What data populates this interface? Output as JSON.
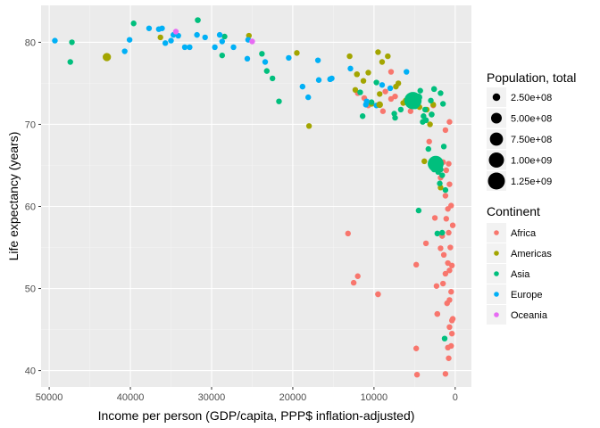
{
  "chart_data": {
    "type": "scatter",
    "xlabel": "Income per person (GDP/capita, PPP$ inflation-adjusted)",
    "ylabel": "Life expectancy (years)",
    "x_reversed": true,
    "xlim": [
      51000,
      -2000
    ],
    "ylim": [
      38,
      84.5
    ],
    "x_ticks": [
      50000,
      40000,
      30000,
      20000,
      10000,
      0
    ],
    "x_tick_labels": [
      "50000",
      "40000",
      "30000",
      "20000",
      "10000",
      "0"
    ],
    "y_ticks": [
      40,
      50,
      60,
      70,
      80
    ],
    "y_tick_labels": [
      "40",
      "50",
      "60",
      "70",
      "80"
    ],
    "grid": true,
    "legend_position": "right",
    "size_legend": {
      "title": "Population, total",
      "entries": [
        {
          "label": "2.50e+08",
          "value": 250000000
        },
        {
          "label": "5.00e+08",
          "value": 500000000
        },
        {
          "label": "7.50e+08",
          "value": 750000000
        },
        {
          "label": "1.00e+09",
          "value": 1000000000
        },
        {
          "label": "1.25e+09",
          "value": 1250000000
        }
      ]
    },
    "color_legend": {
      "title": "Continent",
      "entries": [
        {
          "label": "Africa",
          "color": "#F8766D"
        },
        {
          "label": "Americas",
          "color": "#A3A500"
        },
        {
          "label": "Asia",
          "color": "#00BF7D"
        },
        {
          "label": "Europe",
          "color": "#00B0F6"
        },
        {
          "label": "Oceania",
          "color": "#E76BF3"
        }
      ]
    },
    "series": [
      {
        "name": "Africa",
        "points": [
          [
            1200,
            39.6
          ],
          [
            4700,
            39.5
          ],
          [
            800,
            41.5
          ],
          [
            500,
            43.0
          ],
          [
            900,
            42.8
          ],
          [
            4800,
            42.7
          ],
          [
            400,
            44.5
          ],
          [
            700,
            45.3
          ],
          [
            400,
            46.1
          ],
          [
            300,
            46.3
          ],
          [
            2200,
            46.9
          ],
          [
            1000,
            48.2
          ],
          [
            700,
            48.6
          ],
          [
            9500,
            49.3
          ],
          [
            500,
            49.6
          ],
          [
            2300,
            50.3
          ],
          [
            1500,
            50.6
          ],
          [
            1200,
            51.8
          ],
          [
            700,
            52.2
          ],
          [
            400,
            52.8
          ],
          [
            4800,
            52.9
          ],
          [
            12000,
            51.5
          ],
          [
            12500,
            50.7
          ],
          [
            900,
            53.1
          ],
          [
            1400,
            54.1
          ],
          [
            600,
            55.0
          ],
          [
            1800,
            54.9
          ],
          [
            3600,
            55.5
          ],
          [
            13200,
            56.7
          ],
          [
            800,
            56.8
          ],
          [
            1600,
            56.4
          ],
          [
            300,
            57.7
          ],
          [
            1100,
            58.5
          ],
          [
            2500,
            58.6
          ],
          [
            500,
            60.1
          ],
          [
            900,
            59.7
          ],
          [
            1200,
            61.3
          ],
          [
            700,
            62.7
          ],
          [
            1800,
            63.5
          ],
          [
            1100,
            64.4
          ],
          [
            800,
            65.2
          ],
          [
            1500,
            65.4
          ],
          [
            3200,
            67.9
          ],
          [
            1200,
            69.3
          ],
          [
            700,
            70.3
          ],
          [
            5500,
            71.6
          ],
          [
            2700,
            72.3
          ],
          [
            8900,
            71.6
          ],
          [
            8600,
            74.0
          ],
          [
            5800,
            72.8
          ],
          [
            7900,
            73.1
          ],
          [
            7400,
            73.4
          ],
          [
            10700,
            72.3
          ],
          [
            12000,
            73.8
          ],
          [
            11200,
            73.2
          ],
          [
            7900,
            76.4
          ]
        ]
      },
      {
        "name": "Americas",
        "points": [
          [
            42900,
            78.2
          ],
          [
            36300,
            80.6
          ],
          [
            25400,
            80.8
          ],
          [
            19500,
            78.7
          ],
          [
            18000,
            69.8
          ],
          [
            13000,
            78.3
          ],
          [
            12300,
            74.2
          ],
          [
            12100,
            76.1
          ],
          [
            10700,
            76.3
          ],
          [
            9000,
            77.6
          ],
          [
            9300,
            73.7
          ],
          [
            10300,
            72.5
          ],
          [
            11300,
            75.3
          ],
          [
            8300,
            78.3
          ],
          [
            9500,
            78.8
          ],
          [
            7300,
            74.6
          ],
          [
            7000,
            75.0
          ],
          [
            6400,
            72.6
          ],
          [
            6100,
            72.9
          ],
          [
            5000,
            73.2
          ],
          [
            4400,
            72.1
          ],
          [
            3500,
            71.8
          ],
          [
            2900,
            71.2
          ],
          [
            2700,
            72.4
          ],
          [
            3800,
            65.5
          ],
          [
            3100,
            70.0
          ],
          [
            1800,
            62.3
          ],
          [
            9300,
            72.4
          ]
        ]
      },
      {
        "name": "Asia",
        "points": [
          [
            47200,
            80.0
          ],
          [
            47400,
            77.6
          ],
          [
            39600,
            82.3
          ],
          [
            31700,
            82.7
          ],
          [
            28400,
            80.7
          ],
          [
            28700,
            78.4
          ],
          [
            23800,
            78.6
          ],
          [
            23200,
            76.5
          ],
          [
            22500,
            75.6
          ],
          [
            21700,
            72.8
          ],
          [
            11400,
            71.0
          ],
          [
            11700,
            73.9
          ],
          [
            10300,
            72.7
          ],
          [
            9700,
            75.1
          ],
          [
            7400,
            70.8
          ],
          [
            7500,
            71.3
          ],
          [
            6700,
            71.8
          ],
          [
            5200,
            72.9
          ],
          [
            4900,
            72.2
          ],
          [
            4000,
            70.3
          ],
          [
            3900,
            71.0
          ],
          [
            3700,
            71.8
          ],
          [
            3000,
            72.9
          ],
          [
            2600,
            74.3
          ],
          [
            4300,
            74.1
          ],
          [
            1800,
            73.8
          ],
          [
            3300,
            67.0
          ],
          [
            2400,
            65.2
          ],
          [
            2600,
            64.5
          ],
          [
            2100,
            64.2
          ],
          [
            1600,
            63.8
          ],
          [
            1900,
            62.8
          ],
          [
            1200,
            62.0
          ],
          [
            1400,
            67.3
          ],
          [
            4500,
            59.5
          ],
          [
            1300,
            43.9
          ],
          [
            1600,
            56.8
          ],
          [
            2200,
            56.7
          ],
          [
            5600,
            73.1
          ],
          [
            1500,
            72.5
          ],
          [
            3600,
            70.5
          ]
        ]
      },
      {
        "name": "Europe",
        "points": [
          [
            49300,
            80.2
          ],
          [
            40700,
            78.9
          ],
          [
            37700,
            81.7
          ],
          [
            36100,
            81.7
          ],
          [
            35700,
            79.9
          ],
          [
            34100,
            80.8
          ],
          [
            33300,
            79.4
          ],
          [
            32700,
            79.4
          ],
          [
            30800,
            80.6
          ],
          [
            29000,
            80.9
          ],
          [
            28700,
            80.1
          ],
          [
            27300,
            79.4
          ],
          [
            25600,
            78.0
          ],
          [
            25500,
            80.3
          ],
          [
            23400,
            77.6
          ],
          [
            20500,
            78.1
          ],
          [
            18800,
            74.6
          ],
          [
            18100,
            73.3
          ],
          [
            16900,
            77.8
          ],
          [
            16800,
            75.4
          ],
          [
            15400,
            75.5
          ],
          [
            15200,
            75.6
          ],
          [
            12900,
            76.8
          ],
          [
            11000,
            72.4
          ],
          [
            10900,
            72.8
          ],
          [
            9700,
            72.3
          ],
          [
            9000,
            74.8
          ],
          [
            8000,
            74.4
          ],
          [
            6000,
            76.4
          ],
          [
            35000,
            80.2
          ],
          [
            34700,
            80.9
          ],
          [
            31800,
            80.9
          ],
          [
            29600,
            79.4
          ],
          [
            40100,
            80.3
          ],
          [
            36500,
            81.6
          ]
        ]
      },
      {
        "name": "Oceania",
        "points": [
          [
            34400,
            81.3
          ],
          [
            25000,
            80.1
          ]
        ]
      }
    ],
    "population_scale_points": [
      {
        "continent": "Asia",
        "x": 5200,
        "y": 72.9,
        "pop": 1300000000
      },
      {
        "continent": "Asia",
        "x": 2400,
        "y": 65.2,
        "pop": 1100000000
      },
      {
        "continent": "Americas",
        "x": 42900,
        "y": 78.2,
        "pop": 300000000
      },
      {
        "continent": "Asia",
        "x": 4500,
        "y": 73.3,
        "pop": 230000000
      },
      {
        "continent": "Americas",
        "x": 9300,
        "y": 72.4,
        "pop": 190000000
      },
      {
        "continent": "Asia",
        "x": 31700,
        "y": 82.7,
        "pop": 130000000
      },
      {
        "continent": "Africa",
        "x": 2200,
        "y": 46.9,
        "pop": 140000000
      },
      {
        "continent": "Europe",
        "x": 15400,
        "y": 75.5,
        "pop": 142000000
      },
      {
        "continent": "Asia",
        "x": 2900,
        "y": 71.2,
        "pop": 150000000
      },
      {
        "continent": "Asia",
        "x": 1800,
        "y": 64.5,
        "pop": 150000000
      },
      {
        "continent": "Americas",
        "x": 12100,
        "y": 76.1,
        "pop": 105000000
      },
      {
        "continent": "Africa",
        "x": 9500,
        "y": 49.3,
        "pop": 48000000
      },
      {
        "continent": "Asia",
        "x": 2600,
        "y": 74.3,
        "pop": 85000000
      },
      {
        "continent": "Asia",
        "x": 3600,
        "y": 70.5,
        "pop": 75000000
      }
    ]
  }
}
